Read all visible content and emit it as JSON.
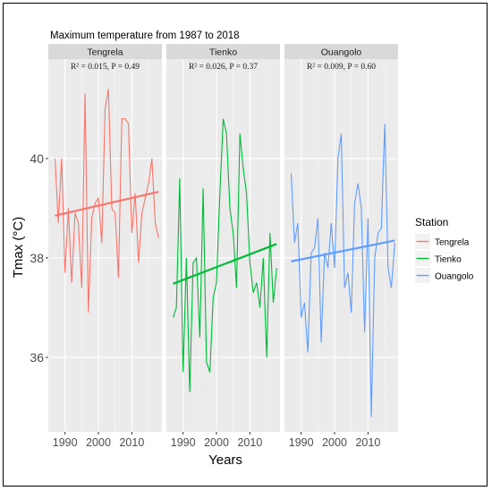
{
  "chart_data": {
    "type": "line",
    "title": "Maximum temperature from 1987 to 2018",
    "xlabel": "Years",
    "ylabel": "Tmax (°C)",
    "xlim": [
      1985,
      2019
    ],
    "ylim": [
      34.5,
      42.0
    ],
    "x_ticks": [
      {
        "value": 1990,
        "label": "1990"
      },
      {
        "value": 2000,
        "label": "2000"
      },
      {
        "value": 2010,
        "label": "2010"
      }
    ],
    "y_ticks": [
      {
        "value": 36,
        "label": "36"
      },
      {
        "value": 38,
        "label": "38"
      },
      {
        "value": 40,
        "label": "40"
      }
    ],
    "grid": true,
    "legend": {
      "title": "Station",
      "position": "right",
      "entries": [
        {
          "label": "Tengrela",
          "color": "#F8766D"
        },
        {
          "label": "Tienko",
          "color": "#00BA38"
        },
        {
          "label": "Ouangolo",
          "color": "#619CFF"
        }
      ]
    },
    "panels": [
      {
        "name": "Tengrela",
        "color": "#F8766D",
        "stat_label": "R² = 0.015, P = 0.49",
        "x": [
          1987,
          1988,
          1989,
          1990,
          1991,
          1992,
          1993,
          1994,
          1995,
          1996,
          1997,
          1998,
          1999,
          2000,
          2001,
          2002,
          2003,
          2004,
          2005,
          2006,
          2007,
          2008,
          2009,
          2010,
          2011,
          2012,
          2013,
          2014,
          2015,
          2016,
          2017,
          2018
        ],
        "y": [
          40.0,
          38.7,
          40.0,
          37.7,
          39.0,
          37.5,
          38.9,
          38.7,
          37.4,
          41.3,
          36.9,
          38.8,
          39.1,
          39.2,
          38.3,
          41.0,
          41.4,
          39.0,
          38.9,
          37.6,
          40.8,
          40.8,
          40.7,
          38.5,
          39.3,
          37.9,
          38.9,
          39.2,
          39.5,
          40.0,
          38.7,
          38.4
        ],
        "trend": [
          38.85,
          39.33
        ]
      },
      {
        "name": "Tienko",
        "color": "#00BA38",
        "stat_label": "R² = 0.026, P = 0.37",
        "x": [
          1987,
          1988,
          1989,
          1990,
          1991,
          1992,
          1993,
          1994,
          1995,
          1996,
          1997,
          1998,
          1999,
          2000,
          2001,
          2002,
          2003,
          2004,
          2005,
          2006,
          2007,
          2008,
          2009,
          2010,
          2011,
          2012,
          2013,
          2014,
          2015,
          2016,
          2017,
          2018
        ],
        "y": [
          36.8,
          37.0,
          39.6,
          35.7,
          38.0,
          35.3,
          37.9,
          38.0,
          36.4,
          39.4,
          35.9,
          35.7,
          37.2,
          37.5,
          39.3,
          40.8,
          40.5,
          39.0,
          38.5,
          37.4,
          40.5,
          39.8,
          39.3,
          37.9,
          37.3,
          37.5,
          37.0,
          38.0,
          36.0,
          38.5,
          37.1,
          37.8
        ],
        "trend": [
          37.48,
          38.28
        ]
      },
      {
        "name": "Ouangolo",
        "color": "#619CFF",
        "stat_label": "R² = 0.009, P = 0.60",
        "x": [
          1987,
          1988,
          1989,
          1990,
          1991,
          1992,
          1993,
          1994,
          1995,
          1996,
          1997,
          1998,
          1999,
          2000,
          2001,
          2002,
          2003,
          2004,
          2005,
          2006,
          2007,
          2008,
          2009,
          2010,
          2011,
          2012,
          2013,
          2014,
          2015,
          2016,
          2017,
          2018
        ],
        "y": [
          39.7,
          38.3,
          38.7,
          36.8,
          37.1,
          36.1,
          38.1,
          38.2,
          38.8,
          36.3,
          38.1,
          37.8,
          38.7,
          37.8,
          40.0,
          40.5,
          37.4,
          37.7,
          36.9,
          39.1,
          39.5,
          39.0,
          36.5,
          38.8,
          34.8,
          38.0,
          38.5,
          38.6,
          40.7,
          37.8,
          37.4,
          38.3
        ],
        "trend": [
          37.93,
          38.35
        ]
      }
    ]
  }
}
